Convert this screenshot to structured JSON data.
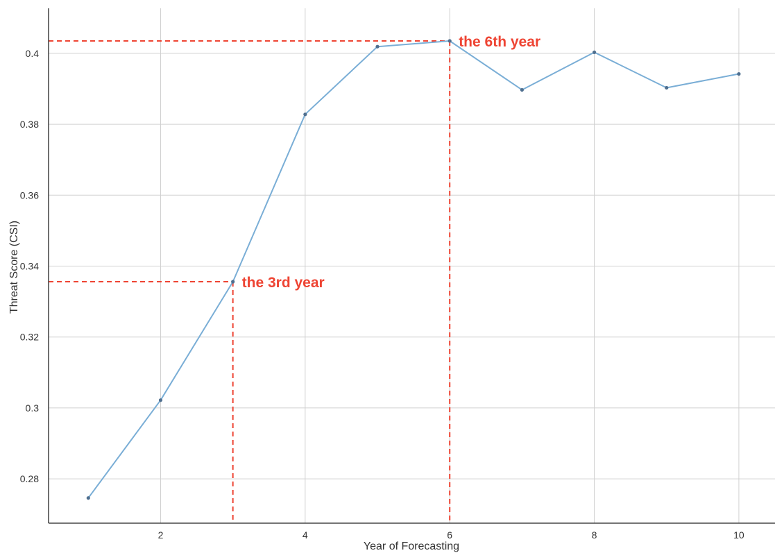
{
  "chart_data": {
    "type": "line",
    "xlabel": "Year of Forecasting",
    "ylabel": "Threat Score (CSI)",
    "xlim": [
      0.45,
      10.5
    ],
    "ylim": [
      0.2675,
      0.4127
    ],
    "x_ticks": [
      2,
      4,
      6,
      8,
      10
    ],
    "x_tick_labels": [
      "2",
      "4",
      "6",
      "8",
      "10"
    ],
    "y_ticks": [
      0.28,
      0.3,
      0.32,
      0.34,
      0.36,
      0.38,
      0.4
    ],
    "y_tick_labels": [
      "0.28",
      "0.3",
      "0.32",
      "0.34",
      "0.36",
      "0.38",
      "0.4"
    ],
    "grid": true,
    "line_color": "#7aaed6",
    "marker_color": "#4f6f8f",
    "annotation_color": "#ee4433",
    "series": [
      {
        "x": [
          1,
          2,
          3,
          4,
          5,
          6,
          7,
          8,
          9,
          10
        ],
        "y": [
          0.2746,
          0.3022,
          0.3356,
          0.3828,
          0.4019,
          0.4035,
          0.3897,
          0.4003,
          0.3903,
          0.3942
        ]
      }
    ],
    "annotations": [
      {
        "text": "the 3rd year",
        "x": 3,
        "y": 0.3356
      },
      {
        "text": "the 6th year",
        "x": 6,
        "y": 0.4035
      }
    ]
  }
}
